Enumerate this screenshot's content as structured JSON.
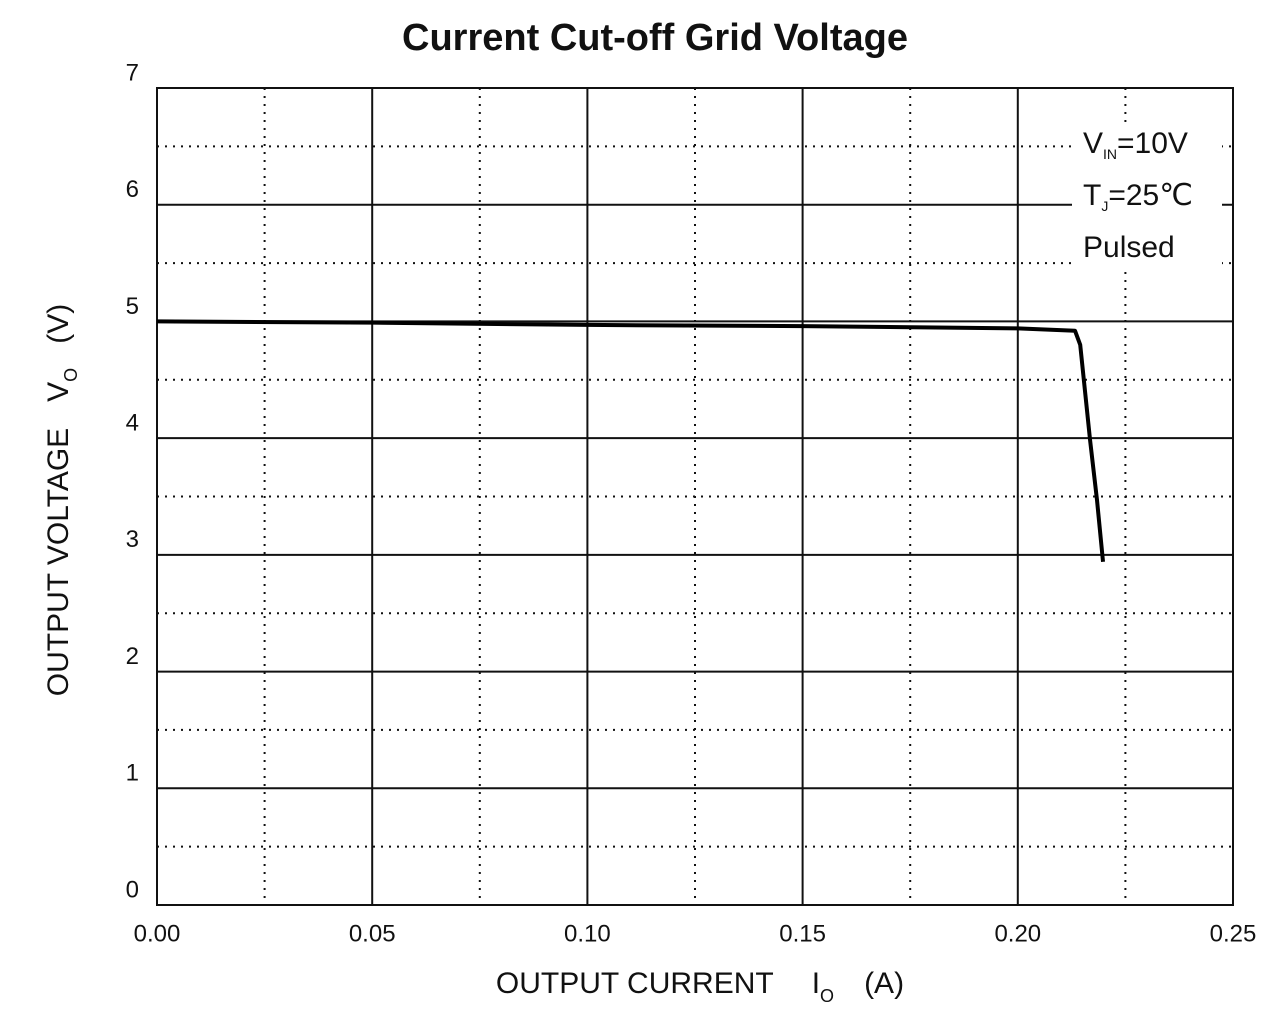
{
  "chart_data": {
    "type": "line",
    "title": "Current  Cut-off Grid Voltage",
    "xlabel": {
      "text": "OUTPUT CURRENT",
      "symbol": "I",
      "subscript": "O",
      "unit": "(A)"
    },
    "ylabel": {
      "text": "OUTPUT VOLTAGE",
      "symbol": "V",
      "subscript": "O",
      "unit": "(V)"
    },
    "annotations": [
      {
        "symbol": "V",
        "subscript": "IN",
        "text": "=10V"
      },
      {
        "symbol": "T",
        "subscript": "J",
        "text": "=25℃"
      },
      {
        "text": "Pulsed"
      }
    ],
    "x": [
      0,
      0.05,
      0.1,
      0.15,
      0.2,
      0.2133,
      0.2145,
      0.2168,
      0.2184,
      0.2198
    ],
    "series": [
      {
        "color": "#000000",
        "values": [
          5.0,
          4.99,
          4.97,
          4.96,
          4.94,
          4.92,
          4.8,
          3.98,
          3.47,
          2.94
        ]
      }
    ],
    "xlim": [
      0,
      0.25
    ],
    "xticks": [
      {
        "value": 0,
        "label": "0.00"
      },
      {
        "value": 0.05,
        "label": "0.05"
      },
      {
        "value": 0.1,
        "label": "0.10"
      },
      {
        "value": 0.15,
        "label": "0.15"
      },
      {
        "value": 0.2,
        "label": "0.20"
      },
      {
        "value": 0.25,
        "label": "0.25"
      }
    ],
    "ylim": [
      0,
      7
    ],
    "yticks": [
      0,
      1,
      2,
      3,
      4,
      5,
      6,
      7
    ],
    "grid": true,
    "minor_grid": true
  }
}
